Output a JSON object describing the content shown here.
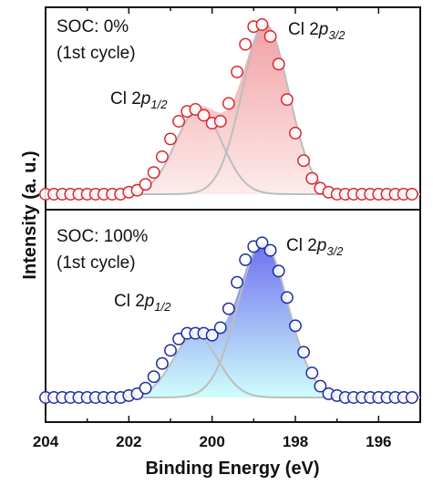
{
  "xlabel": "Binding Energy (eV)",
  "ylabel": "Intensity (a. u.)",
  "xticks": [
    "204",
    "202",
    "200",
    "198",
    "196"
  ],
  "peak_labels": {
    "prefix": "Cl 2",
    "letter": "p",
    "sub_half": "1/2",
    "sub_three_half": "3/2"
  },
  "chart_data": [
    {
      "type": "line",
      "panel": "top",
      "title": "SOC: 0%",
      "subtitle": "(1st cycle)",
      "xlim": [
        204,
        195
      ],
      "x_reversed": true,
      "colors": {
        "marker": "#d9282f",
        "fill_top": "#f2a0a3",
        "fill_bottom": "#fdecec",
        "component": "#bdbdbd"
      },
      "baseline": 0,
      "components": [
        {
          "name": "Cl 2p1/2",
          "center": 200.32,
          "height": 0.43,
          "sigma": 0.56
        },
        {
          "name": "Cl 2p3/2",
          "center": 198.72,
          "height": 0.86,
          "sigma": 0.56
        }
      ],
      "data": {
        "x": [
          204.0,
          203.8,
          203.6,
          203.4,
          203.2,
          203.0,
          202.8,
          202.6,
          202.4,
          202.2,
          202.0,
          201.8,
          201.6,
          201.4,
          201.2,
          201.0,
          200.8,
          200.6,
          200.4,
          200.2,
          200.0,
          199.8,
          199.6,
          199.4,
          199.2,
          199.0,
          198.8,
          198.6,
          198.4,
          198.2,
          198.0,
          197.8,
          197.6,
          197.4,
          197.2,
          197.0,
          196.8,
          196.6,
          196.4,
          196.2,
          196.0,
          195.8,
          195.6,
          195.4,
          195.2
        ],
        "y": [
          0.0,
          0.0,
          0.0,
          0.0,
          0.0,
          0.0,
          0.0,
          0.0,
          0.0,
          0.0,
          0.01,
          0.02,
          0.05,
          0.11,
          0.19,
          0.28,
          0.37,
          0.42,
          0.43,
          0.4,
          0.36,
          0.37,
          0.46,
          0.62,
          0.76,
          0.85,
          0.86,
          0.8,
          0.66,
          0.48,
          0.31,
          0.17,
          0.08,
          0.03,
          0.01,
          0.0,
          0.0,
          0.0,
          0.0,
          0.0,
          0.0,
          0.0,
          0.0,
          0.0,
          0.0
        ]
      }
    },
    {
      "type": "line",
      "panel": "bottom",
      "title": "SOC: 100%",
      "subtitle": "(1st cycle)",
      "xlim": [
        204,
        195
      ],
      "x_reversed": true,
      "colors": {
        "marker": "#1f2d9f",
        "fill_top": "#6f6ff0",
        "fill_bottom": "#cffdfb",
        "component": "#bdbdbd"
      },
      "baseline": 0,
      "components": [
        {
          "name": "Cl 2p1/2",
          "center": 200.4,
          "height": 0.33,
          "sigma": 0.54
        },
        {
          "name": "Cl 2p3/2",
          "center": 198.78,
          "height": 0.82,
          "sigma": 0.6
        }
      ],
      "data": {
        "x": [
          204.0,
          203.8,
          203.6,
          203.4,
          203.2,
          203.0,
          202.8,
          202.6,
          202.4,
          202.2,
          202.0,
          201.8,
          201.6,
          201.4,
          201.2,
          201.0,
          200.8,
          200.6,
          200.4,
          200.2,
          200.0,
          199.8,
          199.6,
          199.4,
          199.2,
          199.0,
          198.8,
          198.6,
          198.4,
          198.2,
          198.0,
          197.8,
          197.6,
          197.4,
          197.2,
          197.0,
          196.8,
          196.6,
          196.4,
          196.2,
          196.0,
          195.8,
          195.6,
          195.4,
          195.2
        ],
        "y": [
          0.0,
          0.0,
          0.0,
          0.0,
          0.0,
          0.0,
          0.0,
          0.0,
          0.0,
          0.0,
          0.01,
          0.02,
          0.05,
          0.11,
          0.18,
          0.25,
          0.31,
          0.34,
          0.34,
          0.34,
          0.33,
          0.37,
          0.47,
          0.61,
          0.73,
          0.8,
          0.82,
          0.78,
          0.67,
          0.53,
          0.38,
          0.24,
          0.13,
          0.06,
          0.02,
          0.01,
          0.0,
          0.0,
          0.0,
          0.0,
          0.0,
          0.0,
          0.0,
          0.0,
          0.0
        ]
      }
    }
  ]
}
